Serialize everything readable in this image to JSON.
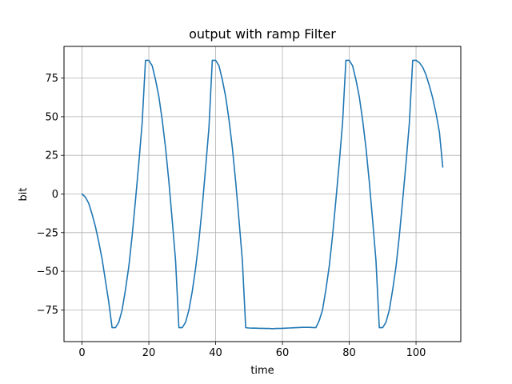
{
  "chart_data": {
    "type": "line",
    "title": "output with ramp Filter",
    "xlabel": "time",
    "ylabel": "bit",
    "xlim": [
      -5.4,
      113.4
    ],
    "ylim": [
      -95.5,
      95.5
    ],
    "grid": true,
    "colors": {
      "line": "#1f77b4",
      "grid": "#b0b0b0",
      "axes": "#000000"
    },
    "x_ticks": [
      {
        "value": 0,
        "label": "0"
      },
      {
        "value": 20,
        "label": "20"
      },
      {
        "value": 40,
        "label": "40"
      },
      {
        "value": 60,
        "label": "60"
      },
      {
        "value": 80,
        "label": "80"
      },
      {
        "value": 100,
        "label": "100"
      }
    ],
    "y_ticks": [
      {
        "value": 75,
        "label": "75"
      },
      {
        "value": 50,
        "label": "50"
      },
      {
        "value": 25,
        "label": "25"
      },
      {
        "value": 0,
        "label": "0"
      },
      {
        "value": -25,
        "label": "−25"
      },
      {
        "value": -50,
        "label": "−50"
      },
      {
        "value": -75,
        "label": "−75"
      }
    ],
    "series": [
      {
        "x": [
          0,
          1,
          2,
          3,
          4,
          5,
          6,
          7,
          8,
          9,
          10,
          11,
          12,
          13,
          14,
          15,
          16,
          17,
          18,
          19,
          20,
          21,
          22,
          23,
          24,
          25,
          26,
          27,
          28,
          29,
          30,
          31,
          32,
          33,
          34,
          35,
          36,
          37,
          38,
          39,
          40,
          41,
          42,
          43,
          44,
          45,
          46,
          47,
          48,
          49,
          50,
          51,
          52,
          53,
          54,
          55,
          56,
          57,
          58,
          59,
          60,
          61,
          62,
          63,
          64,
          65,
          66,
          67,
          68,
          69,
          70,
          71,
          72,
          73,
          74,
          75,
          76,
          77,
          78,
          79,
          80,
          81,
          82,
          83,
          84,
          85,
          86,
          87,
          88,
          89,
          90,
          91,
          92,
          93,
          94,
          95,
          96,
          97,
          98,
          99,
          100,
          101,
          102,
          103,
          104,
          105,
          106,
          107,
          108
        ],
        "values": [
          0,
          -2,
          -6,
          -13,
          -21,
          -31,
          -42,
          -56,
          -70,
          -86.5,
          -86.5,
          -83,
          -75,
          -62,
          -47,
          -27,
          -4,
          20,
          46,
          86.5,
          86.5,
          83,
          74,
          63,
          48,
          30,
          8,
          -17,
          -43,
          -86.5,
          -86.5,
          -83,
          -75,
          -63,
          -48,
          -30,
          -8,
          17,
          43,
          86.5,
          86.5,
          83,
          74,
          63,
          48,
          30,
          8,
          -17,
          -43,
          -86.5,
          -86.7,
          -86.8,
          -86.8,
          -86.9,
          -86.9,
          -87,
          -87,
          -87.2,
          -87,
          -87,
          -86.9,
          -86.8,
          -86.7,
          -86.6,
          -86.5,
          -86.4,
          -86.3,
          -86.3,
          -86.3,
          -86.4,
          -86.5,
          -82,
          -75,
          -62,
          -47,
          -27,
          -4,
          20,
          46,
          86.5,
          86.5,
          83,
          74,
          63,
          48,
          30,
          8,
          -17,
          -43,
          -86.5,
          -86.5,
          -83,
          -75,
          -62,
          -47,
          -27,
          -4,
          20,
          46,
          86.5,
          86.5,
          85,
          82,
          77,
          70,
          62,
          52,
          40,
          17.5
        ]
      }
    ]
  }
}
